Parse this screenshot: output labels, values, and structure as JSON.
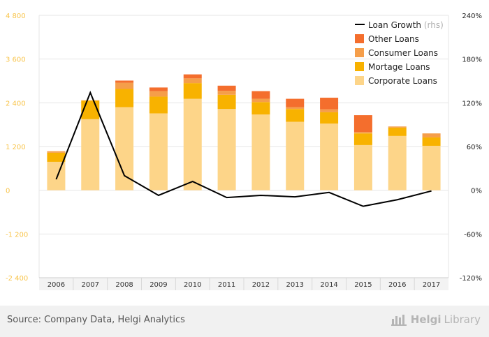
{
  "chart_data": {
    "type": "bar",
    "stacked": true,
    "categories": [
      "2006",
      "2007",
      "2008",
      "2009",
      "2010",
      "2011",
      "2012",
      "2013",
      "2014",
      "2015",
      "2016",
      "2017"
    ],
    "series": [
      {
        "name": "Corporate Loans",
        "color": "#fdd589",
        "values": [
          780,
          1950,
          2280,
          2110,
          2510,
          2230,
          2080,
          1880,
          1830,
          1240,
          1490,
          1220
        ]
      },
      {
        "name": "Mortage Loans",
        "color": "#f8b200",
        "values": [
          250,
          510,
          500,
          460,
          430,
          390,
          340,
          350,
          310,
          320,
          230,
          230
        ]
      },
      {
        "name": "Consumer Loans",
        "color": "#f59e4a",
        "values": [
          40,
          10,
          170,
          150,
          130,
          110,
          90,
          50,
          80,
          40,
          30,
          110
        ]
      },
      {
        "name": "Other Loans",
        "color": "#f46e2d",
        "values": [
          0,
          0,
          60,
          100,
          110,
          140,
          210,
          230,
          320,
          460,
          0,
          0
        ]
      }
    ],
    "line_series": {
      "name": "Loan Growth",
      "axis_note": "(rhs)",
      "color": "#000000",
      "values": [
        15,
        134,
        20,
        -7,
        12,
        -10,
        -7,
        -9,
        -3,
        -22,
        -13,
        -1
      ]
    },
    "y_left": {
      "min": -2400,
      "max": 4800,
      "ticks": [
        -2400,
        -1200,
        0,
        1200,
        2400,
        3600,
        4800
      ],
      "tick_labels": [
        "-2 400",
        "-1 200",
        "0",
        "1 200",
        "2 400",
        "3 600",
        "4 800"
      ]
    },
    "y_right": {
      "min": -120,
      "max": 240,
      "ticks": [
        -120,
        -60,
        0,
        60,
        120,
        180,
        240
      ],
      "tick_labels": [
        "-120%",
        "-60%",
        "0%",
        "60%",
        "120%",
        "180%",
        "240%"
      ]
    },
    "grid": true,
    "legend_position": "top-right"
  },
  "legend": [
    {
      "label": "Loan Growth",
      "suffix": "(rhs)",
      "kind": "line",
      "color": "#000000"
    },
    {
      "label": "Other Loans",
      "kind": "box",
      "color": "#f46e2d"
    },
    {
      "label": "Consumer Loans",
      "kind": "box",
      "color": "#f59e4a"
    },
    {
      "label": "Mortage Loans",
      "kind": "box",
      "color": "#f8b200"
    },
    {
      "label": "Corporate Loans",
      "kind": "box",
      "color": "#fdd589"
    }
  ],
  "footer": {
    "source": "Source: Company Data, Helgi Analytics",
    "brand_1": "Helgi",
    "brand_2": "Library",
    "logo_icon": "helgi-library-logo-icon"
  },
  "colors": {
    "left_axis": "#f8c44a",
    "right_axis": "#222222",
    "grid": "#e6e6e6",
    "footer_bg": "#f1f1f1"
  }
}
